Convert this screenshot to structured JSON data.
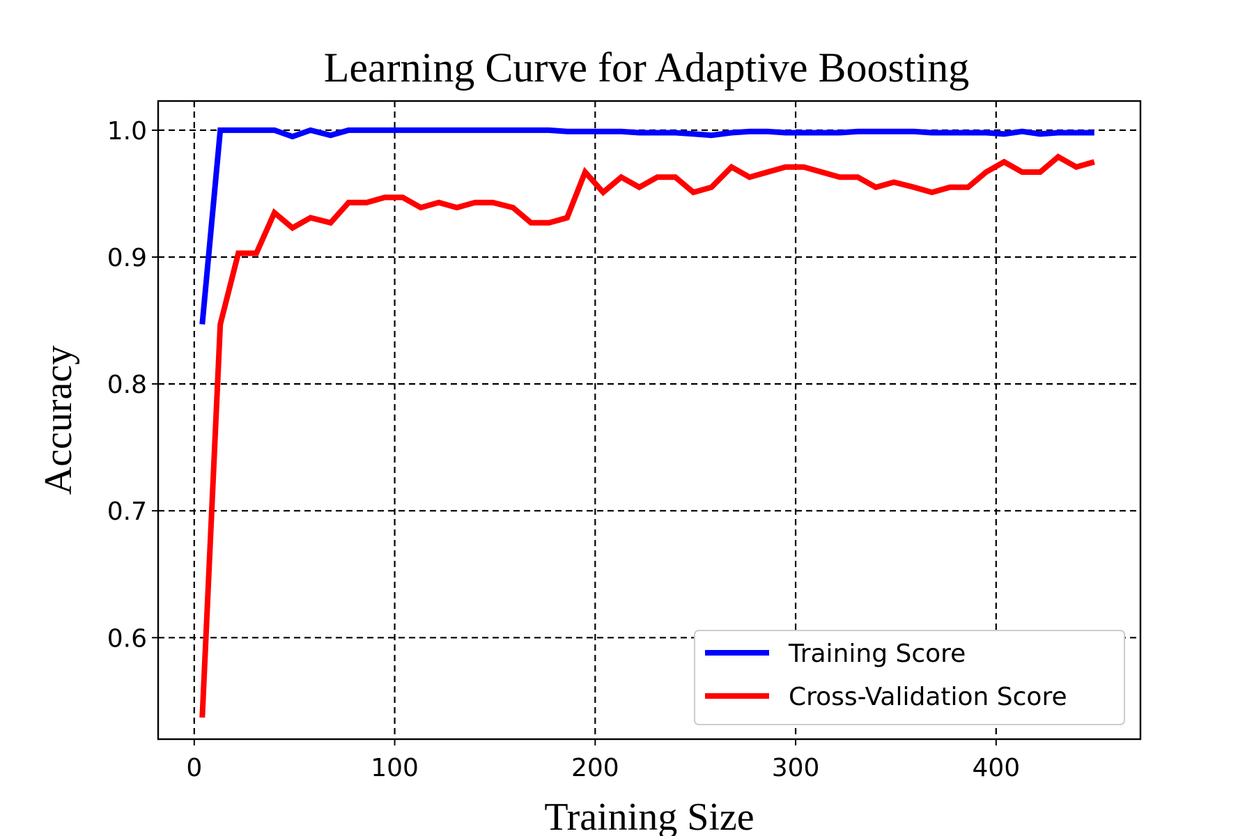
{
  "chart_data": {
    "type": "line",
    "title": "Learning Curve for Adaptive Boosting",
    "xlabel": "Training Size",
    "ylabel": "Accuracy",
    "xlim": [
      -18,
      472
    ],
    "ylim": [
      0.52,
      1.023
    ],
    "xticks": [
      0,
      100,
      200,
      300,
      400
    ],
    "yticks": [
      0.6,
      0.7,
      0.8,
      0.9,
      1.0
    ],
    "xtick_labels": [
      "0",
      "100",
      "200",
      "300",
      "400"
    ],
    "ytick_labels": [
      "0.6",
      "0.7",
      "0.8",
      "0.9",
      "1.0"
    ],
    "grid": true,
    "legend_position": "lower-right",
    "x": [
      4,
      13,
      22,
      31,
      40,
      49,
      58,
      68,
      77,
      86,
      95,
      104,
      113,
      122,
      131,
      140,
      149,
      159,
      168,
      177,
      186,
      195,
      204,
      213,
      222,
      231,
      240,
      249,
      258,
      268,
      277,
      286,
      295,
      304,
      313,
      322,
      331,
      340,
      349,
      359,
      368,
      377,
      386,
      395,
      404,
      413,
      422,
      431,
      440,
      449
    ],
    "series": [
      {
        "name": "Training Score",
        "color": "#0000ff",
        "values": [
          0.847,
          1.0,
          1.0,
          1.0,
          1.0,
          0.995,
          1.0,
          0.996,
          1.0,
          1.0,
          1.0,
          1.0,
          1.0,
          1.0,
          1.0,
          1.0,
          1.0,
          1.0,
          1.0,
          1.0,
          0.999,
          0.999,
          0.999,
          0.999,
          0.998,
          0.998,
          0.998,
          0.997,
          0.996,
          0.998,
          0.999,
          0.999,
          0.998,
          0.998,
          0.998,
          0.998,
          0.999,
          0.999,
          0.999,
          0.999,
          0.998,
          0.998,
          0.998,
          0.998,
          0.997,
          0.999,
          0.997,
          0.998,
          0.998,
          0.998
        ]
      },
      {
        "name": "Cross-Validation Score",
        "color": "#ff0000",
        "values": [
          0.537,
          0.847,
          0.903,
          0.903,
          0.935,
          0.923,
          0.931,
          0.927,
          0.943,
          0.943,
          0.947,
          0.947,
          0.939,
          0.943,
          0.939,
          0.943,
          0.943,
          0.939,
          0.927,
          0.927,
          0.931,
          0.967,
          0.951,
          0.963,
          0.955,
          0.963,
          0.963,
          0.951,
          0.955,
          0.971,
          0.963,
          0.967,
          0.971,
          0.971,
          0.967,
          0.963,
          0.963,
          0.955,
          0.959,
          0.955,
          0.951,
          0.955,
          0.955,
          0.967,
          0.975,
          0.967,
          0.967,
          0.979,
          0.971,
          0.975
        ]
      }
    ]
  }
}
